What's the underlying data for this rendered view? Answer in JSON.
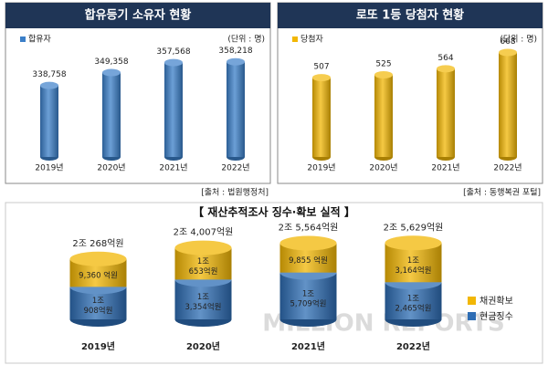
{
  "chart_data": [
    {
      "type": "bar",
      "title": "합유등기 소유자 현황",
      "unit": "(단위 : 명)",
      "source": "[출처 : 법원행정처]",
      "categories": [
        "2019년",
        "2020년",
        "2021년",
        "2022년"
      ],
      "series": [
        {
          "name": "합유자",
          "color": "#3b7fc8",
          "values": [
            338758,
            349358,
            357568,
            358218
          ],
          "value_labels": [
            "338,758",
            "349,358",
            "357,568",
            "358,218"
          ]
        }
      ],
      "ylim": [
        280000,
        370000
      ]
    },
    {
      "type": "bar",
      "title": "로또 1등 당첨자 현황",
      "unit": "(단위 : 명)",
      "source": "[출처 : 동행복권 포털]",
      "categories": [
        "2019년",
        "2020년",
        "2021년",
        "2022년"
      ],
      "series": [
        {
          "name": "당첨자",
          "color": "#f2b705",
          "values": [
            507,
            525,
            564,
            668
          ]
        }
      ],
      "ylim": [
        0,
        700
      ]
    },
    {
      "type": "stacked_bar",
      "title": "【 재산추적조사 징수·확보 실적 】",
      "watermark": "MILLION REPORTS",
      "categories": [
        "2019년",
        "2020년",
        "2021년",
        "2022년"
      ],
      "total_labels": [
        "2조 268억원",
        "2조 4,007억원",
        "2조 5,564억원",
        "2조 5,629억원"
      ],
      "series": [
        {
          "name": "현금징수",
          "color": "#2e6db4",
          "values": [
            10908,
            13354,
            15709,
            12465
          ],
          "value_labels": [
            [
              "1조",
              "908억원"
            ],
            [
              "1조",
              "3,354억원"
            ],
            [
              "1조",
              "5,709억원"
            ],
            [
              "1조",
              "2,465억원"
            ]
          ]
        },
        {
          "name": "채권확보",
          "color": "#f2b705",
          "values": [
            9360,
            10653,
            9855,
            13164
          ],
          "value_labels": [
            [
              "9,360 억원"
            ],
            [
              "1조",
              "653억원"
            ],
            [
              "9,855 억원"
            ],
            [
              "1조",
              "3,164억원"
            ]
          ]
        }
      ],
      "ylim": [
        0,
        30000
      ]
    }
  ]
}
